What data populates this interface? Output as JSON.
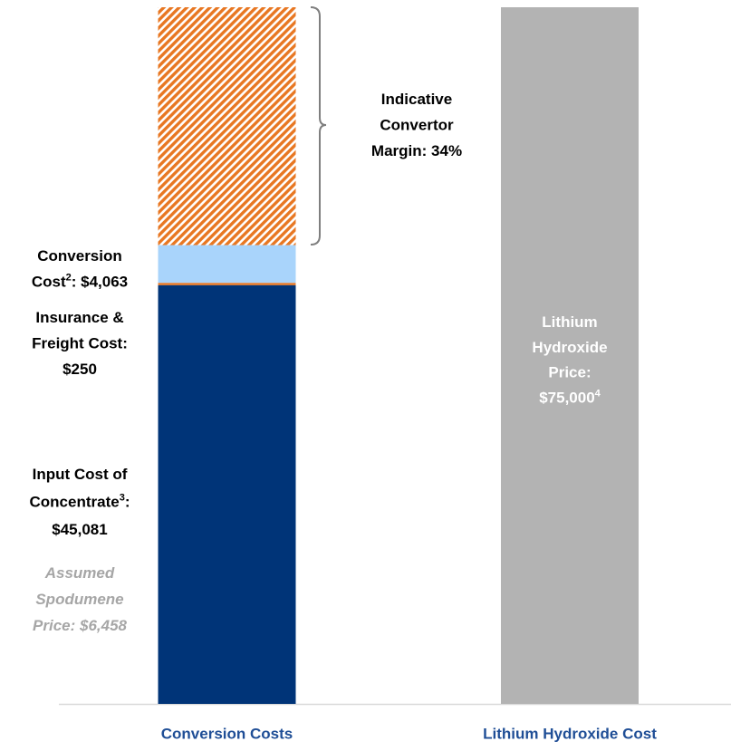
{
  "chart_data": {
    "type": "stacked-bar",
    "categories": [
      "Conversion Costs",
      "Lithium Hydroxide Cost"
    ],
    "ylim": [
      0,
      75000
    ],
    "series": [
      {
        "color": "#003478",
        "values": [
          45081,
          null
        ]
      },
      {
        "color": "#e87722",
        "values": [
          250,
          null
        ]
      },
      {
        "color": "#a9d4fb",
        "values": [
          4063,
          null
        ]
      },
      {
        "color": "#e87722",
        "pattern": "hatch",
        "values": [
          25606,
          null
        ]
      },
      {
        "color": "#b3b3b3",
        "values": [
          null,
          75000
        ]
      }
    ],
    "annotations": [
      {
        "color": "#000000",
        "lines": [
          [
            {
              "text": "Indicative"
            }
          ],
          [
            {
              "text": "Convertor"
            }
          ],
          [
            {
              "text": "Margin: 34%"
            }
          ]
        ]
      },
      {
        "color": "#000000",
        "lines": [
          [
            {
              "text": "Conversion"
            }
          ],
          [
            {
              "text": "Cost"
            },
            {
              "sup": "2"
            },
            {
              "text": ": $4,063"
            }
          ]
        ]
      },
      {
        "color": "#000000",
        "lines": [
          [
            {
              "text": "Insurance &"
            }
          ],
          [
            {
              "text": "Freight Cost:"
            }
          ],
          [
            {
              "text": "$250"
            }
          ]
        ]
      },
      {
        "color": "#000000",
        "lines": [
          [
            {
              "text": "Input Cost of"
            }
          ],
          [
            {
              "text": "Concentrate"
            },
            {
              "sup": "3"
            },
            {
              "text": ":"
            }
          ],
          [
            {
              "text": "$45,081"
            }
          ]
        ]
      },
      {
        "color": "#a6a6a6",
        "italic": true,
        "lines": [
          [
            {
              "text": "Assumed"
            }
          ],
          [
            {
              "text": "Spodumene"
            }
          ],
          [
            {
              "text": "Price: $6,458"
            }
          ]
        ]
      },
      {
        "color": "#ffffff",
        "lines": [
          [
            {
              "text": "Lithium"
            }
          ],
          [
            {
              "text": "Hydroxide"
            }
          ],
          [
            {
              "text": "Price:"
            }
          ],
          [
            {
              "text": "$75,000"
            },
            {
              "sup": "4"
            }
          ]
        ]
      }
    ]
  }
}
